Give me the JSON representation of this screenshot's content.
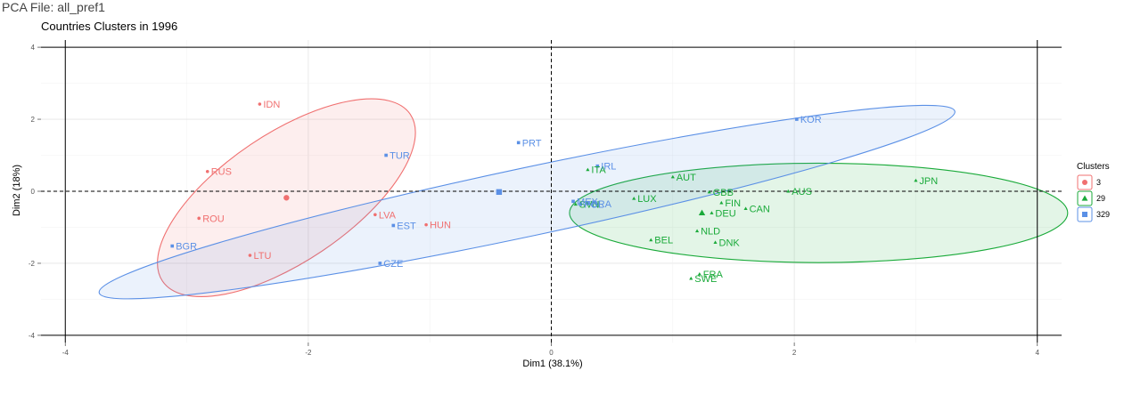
{
  "header": {
    "file_title": "PCA File: all_pref1"
  },
  "chart_data": {
    "type": "scatter",
    "title": "Countries Clusters in 1996",
    "xlabel": "Dim1 (38.1%)",
    "ylabel": "Dim2 (18%)",
    "xlim": [
      -4.2,
      4.2
    ],
    "ylim": [
      -4.2,
      4.2
    ],
    "xticks": [
      -4,
      -2,
      0,
      2,
      4
    ],
    "yticks": [
      -4,
      -2,
      0,
      2,
      4
    ],
    "grid": true,
    "legend": {
      "title": "Clusters",
      "position": "right"
    },
    "series": [
      {
        "name": "3",
        "color": "#f07070",
        "shape": "circle",
        "centroid": [
          -2.18,
          -0.18
        ],
        "ellipse": {
          "cx": -2.18,
          "cy": -0.18,
          "rx": 1.23,
          "ry": 1.78,
          "angle": -34
        },
        "points": [
          {
            "label": "IDN",
            "x": -2.4,
            "y": 2.42
          },
          {
            "label": "RUS",
            "x": -2.83,
            "y": 0.55
          },
          {
            "label": "ROU",
            "x": -2.9,
            "y": -0.75
          },
          {
            "label": "LTU",
            "x": -2.48,
            "y": -1.78
          },
          {
            "label": "LVA",
            "x": -1.45,
            "y": -0.65
          },
          {
            "label": "HUN",
            "x": -1.03,
            "y": -0.93
          }
        ]
      },
      {
        "name": "29",
        "color": "#1aaa3a",
        "shape": "triangle",
        "centroid": [
          1.24,
          -0.6
        ],
        "ellipse": {
          "cx": 2.2,
          "cy": -0.6,
          "rx": 2.05,
          "ry": 1.38,
          "angle": 0
        },
        "points": [
          {
            "label": "JPN",
            "x": 3.0,
            "y": 0.3
          },
          {
            "label": "AUS",
            "x": 1.95,
            "y": 0.0
          },
          {
            "label": "ITA",
            "x": 0.3,
            "y": 0.6
          },
          {
            "label": "AUT",
            "x": 1.0,
            "y": 0.4
          },
          {
            "label": "GBB",
            "x": 1.3,
            "y": -0.02
          },
          {
            "label": "FIN",
            "x": 1.4,
            "y": -0.32
          },
          {
            "label": "CAN",
            "x": 1.6,
            "y": -0.48
          },
          {
            "label": "DEU",
            "x": 1.32,
            "y": -0.6
          },
          {
            "label": "LUX",
            "x": 0.68,
            "y": -0.2
          },
          {
            "label": "NLD",
            "x": 1.2,
            "y": -1.1
          },
          {
            "label": "BEL",
            "x": 0.82,
            "y": -1.35
          },
          {
            "label": "DNK",
            "x": 1.35,
            "y": -1.42
          },
          {
            "label": "FRA",
            "x": 1.22,
            "y": -2.3
          },
          {
            "label": "SWE",
            "x": 1.15,
            "y": -2.42
          },
          {
            "label": "SVN",
            "x": 0.2,
            "y": -0.36
          }
        ]
      },
      {
        "name": "329",
        "color": "#5b90e6",
        "shape": "square",
        "centroid": [
          -0.43,
          -0.02
        ],
        "ellipse": {
          "cx": -0.2,
          "cy": -0.3,
          "rx": 3.6,
          "ry": 0.95,
          "angle": -12
        },
        "points": [
          {
            "label": "KOR",
            "x": 2.02,
            "y": 2.0
          },
          {
            "label": "PRT",
            "x": -0.27,
            "y": 1.35
          },
          {
            "label": "TUR",
            "x": -1.36,
            "y": 1.0
          },
          {
            "label": "IRL",
            "x": 0.38,
            "y": 0.7
          },
          {
            "label": "MEX",
            "x": 0.18,
            "y": -0.28
          },
          {
            "label": "BRA",
            "x": 0.3,
            "y": -0.34
          },
          {
            "label": "POL",
            "x": 0.24,
            "y": -0.36
          },
          {
            "label": "EST",
            "x": -1.3,
            "y": -0.95
          },
          {
            "label": "CZE",
            "x": -1.41,
            "y": -2.0
          },
          {
            "label": "BGR",
            "x": -3.12,
            "y": -1.52
          }
        ]
      }
    ]
  }
}
